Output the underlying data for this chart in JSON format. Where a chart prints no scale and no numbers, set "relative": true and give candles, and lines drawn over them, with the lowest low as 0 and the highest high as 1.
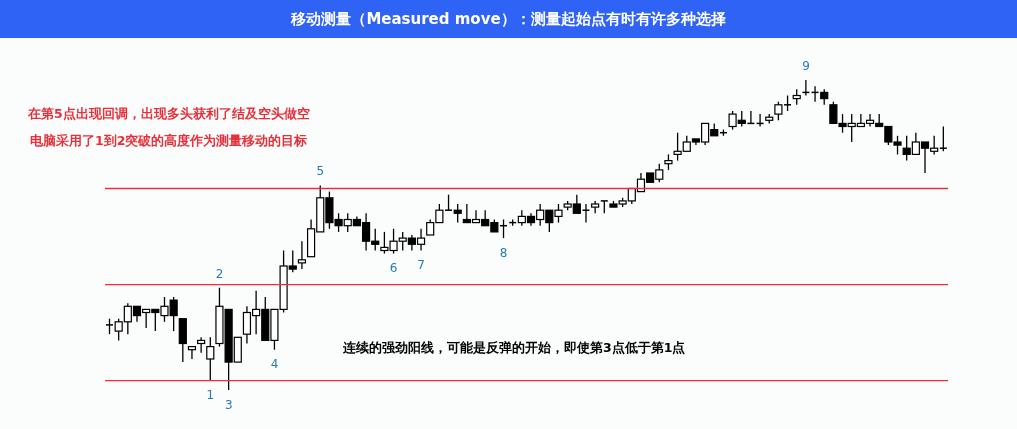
{
  "chart_data": {
    "type": "candlestick",
    "title": "移动测量（Measured move）：测量起始点有时有许多种选择",
    "relative": true,
    "tick_labels": false,
    "grid": false,
    "legend": false,
    "categories": [
      null,
      null,
      null,
      null,
      null,
      null,
      null,
      null,
      null,
      null,
      null,
      null,
      null,
      null,
      null,
      null,
      null,
      null,
      null,
      null,
      null,
      null,
      null,
      null,
      null,
      null,
      null,
      null,
      null,
      null,
      null,
      null,
      null,
      null,
      null,
      null,
      null,
      null,
      null,
      null,
      null,
      null,
      null,
      null,
      null,
      null,
      null,
      null,
      null,
      null,
      null,
      null,
      null,
      null,
      null,
      null,
      null,
      null,
      null,
      null,
      null,
      null,
      null,
      null,
      null,
      null,
      null,
      null,
      null,
      null,
      null,
      null,
      null,
      null,
      null,
      null,
      null,
      null,
      null,
      null,
      null,
      null,
      null,
      null,
      null,
      null,
      null,
      null,
      null,
      null,
      null,
      null
    ],
    "ohlc": [
      [
        0.21,
        0.23,
        0.18,
        0.21
      ],
      [
        0.19,
        0.23,
        0.16,
        0.22
      ],
      [
        0.22,
        0.28,
        0.18,
        0.27
      ],
      [
        0.27,
        0.27,
        0.22,
        0.24
      ],
      [
        0.25,
        0.26,
        0.2,
        0.26
      ],
      [
        0.26,
        0.26,
        0.19,
        0.25
      ],
      [
        0.24,
        0.3,
        0.22,
        0.27
      ],
      [
        0.29,
        0.3,
        0.19,
        0.24
      ],
      [
        0.23,
        0.23,
        0.09,
        0.15
      ],
      [
        0.13,
        0.14,
        0.1,
        0.14
      ],
      [
        0.15,
        0.17,
        0.12,
        0.16
      ],
      [
        0.1,
        0.17,
        0.03,
        0.14
      ],
      [
        0.15,
        0.33,
        0.14,
        0.27
      ],
      [
        0.26,
        0.26,
        0,
        0.09
      ],
      [
        0.09,
        0.17,
        0.09,
        0.17
      ],
      [
        0.18,
        0.27,
        0.15,
        0.25
      ],
      [
        0.24,
        0.32,
        0.18,
        0.26
      ],
      [
        0.26,
        0.3,
        0.16,
        0.16
      ],
      [
        0.16,
        0.26,
        0.13,
        0.26
      ],
      [
        0.26,
        0.45,
        0.25,
        0.4
      ],
      [
        0.4,
        0.45,
        0.38,
        0.39
      ],
      [
        0.41,
        0.48,
        0.39,
        0.42
      ],
      [
        0.43,
        0.55,
        0.43,
        0.52
      ],
      [
        0.51,
        0.66,
        0.51,
        0.62
      ],
      [
        0.62,
        0.64,
        0.52,
        0.54
      ],
      [
        0.55,
        0.57,
        0.51,
        0.53
      ],
      [
        0.53,
        0.57,
        0.51,
        0.55
      ],
      [
        0.55,
        0.56,
        0.53,
        0.53
      ],
      [
        0.54,
        0.57,
        0.45,
        0.48
      ],
      [
        0.48,
        0.52,
        0.45,
        0.47
      ],
      [
        0.45,
        0.51,
        0.44,
        0.46
      ],
      [
        0.45,
        0.52,
        0.44,
        0.48
      ],
      [
        0.48,
        0.51,
        0.45,
        0.49
      ],
      [
        0.49,
        0.5,
        0.45,
        0.47
      ],
      [
        0.47,
        0.52,
        0.45,
        0.49
      ],
      [
        0.5,
        0.55,
        0.5,
        0.54
      ],
      [
        0.54,
        0.6,
        0.54,
        0.58
      ],
      [
        0.58,
        0.63,
        0.58,
        0.58
      ],
      [
        0.58,
        0.6,
        0.54,
        0.57
      ],
      [
        0.55,
        0.6,
        0.54,
        0.54
      ],
      [
        0.54,
        0.58,
        0.54,
        0.55
      ],
      [
        0.55,
        0.58,
        0.53,
        0.53
      ],
      [
        0.54,
        0.55,
        0.51,
        0.51
      ],
      [
        0.53,
        0.55,
        0.49,
        0.53
      ],
      [
        0.54,
        0.55,
        0.53,
        0.54
      ],
      [
        0.54,
        0.58,
        0.53,
        0.56
      ],
      [
        0.56,
        0.57,
        0.53,
        0.54
      ],
      [
        0.55,
        0.6,
        0.53,
        0.58
      ],
      [
        0.58,
        0.58,
        0.51,
        0.54
      ],
      [
        0.56,
        0.6,
        0.54,
        0.58
      ],
      [
        0.59,
        0.61,
        0.58,
        0.6
      ],
      [
        0.6,
        0.63,
        0.57,
        0.57
      ],
      [
        0.58,
        0.6,
        0.54,
        0.58
      ],
      [
        0.59,
        0.61,
        0.57,
        0.6
      ],
      [
        0.61,
        0.61,
        0.57,
        0.61
      ],
      [
        0.6,
        0.61,
        0.59,
        0.59
      ],
      [
        0.6,
        0.62,
        0.59,
        0.61
      ],
      [
        0.61,
        0.65,
        0.6,
        0.65
      ],
      [
        0.64,
        0.7,
        0.64,
        0.68
      ],
      [
        0.7,
        0.7,
        0.67,
        0.67
      ],
      [
        0.68,
        0.73,
        0.67,
        0.71
      ],
      [
        0.73,
        0.76,
        0.71,
        0.74
      ],
      [
        0.76,
        0.83,
        0.74,
        0.77
      ],
      [
        0.77,
        0.82,
        0.77,
        0.8
      ],
      [
        0.81,
        0.81,
        0.79,
        0.8
      ],
      [
        0.8,
        0.86,
        0.79,
        0.86
      ],
      [
        0.84,
        0.86,
        0.82,
        0.82
      ],
      [
        0.83,
        0.84,
        0.82,
        0.83
      ],
      [
        0.85,
        0.9,
        0.84,
        0.89
      ],
      [
        0.87,
        0.9,
        0.85,
        0.86
      ],
      [
        0.86,
        0.9,
        0.86,
        0.86
      ],
      [
        0.86,
        0.89,
        0.85,
        0.86
      ],
      [
        0.87,
        0.89,
        0.86,
        0.88
      ],
      [
        0.89,
        0.93,
        0.87,
        0.92
      ],
      [
        0.92,
        0.95,
        0.9,
        0.92
      ],
      [
        0.94,
        0.97,
        0.92,
        0.95
      ],
      [
        0.96,
        1,
        0.95,
        0.96
      ],
      [
        0.96,
        0.98,
        0.93,
        0.96
      ],
      [
        0.96,
        0.97,
        0.92,
        0.94
      ],
      [
        0.92,
        0.93,
        0.86,
        0.86
      ],
      [
        0.86,
        0.89,
        0.83,
        0.85
      ],
      [
        0.85,
        0.89,
        0.8,
        0.86
      ],
      [
        0.85,
        0.89,
        0.85,
        0.86
      ],
      [
        0.86,
        0.89,
        0.85,
        0.87
      ],
      [
        0.86,
        0.89,
        0.85,
        0.85
      ],
      [
        0.85,
        0.85,
        0.79,
        0.8
      ],
      [
        0.8,
        0.82,
        0.76,
        0.79
      ],
      [
        0.78,
        0.82,
        0.74,
        0.76
      ],
      [
        0.76,
        0.83,
        0.76,
        0.8
      ],
      [
        0.8,
        0.8,
        0.7,
        0.78
      ],
      [
        0.77,
        0.82,
        0.76,
        0.78
      ],
      [
        0.78,
        0.85,
        0.77,
        0.78
      ]
    ],
    "ref_lines": [
      {
        "axis": "y",
        "value": 0.65,
        "color": "#e8303a"
      },
      {
        "axis": "y",
        "value": 0.34,
        "color": "#e8303a"
      },
      {
        "axis": "y",
        "value": 0.03,
        "color": "#e8303a"
      }
    ],
    "annotations": [
      {
        "text": "1",
        "y": 0.03
      },
      {
        "text": "2",
        "y": 0.33
      },
      {
        "text": "3",
        "y": 0
      },
      {
        "text": "4",
        "y": 0.13
      },
      {
        "text": "5",
        "y": 0.66
      },
      {
        "text": "6",
        "y": 0.44
      },
      {
        "text": "7",
        "y": 0.45
      },
      {
        "text": "8",
        "y": 0.49
      },
      {
        "text": "9",
        "y": 1
      },
      "在第5点出现回调，出现多头获利了结及空头做空",
      "电脑采用了1到2突破的高度作为测量移动的目标",
      "连续的强劲阳线，可能是反弹的开始，即使第3点低于第1点"
    ]
  }
}
